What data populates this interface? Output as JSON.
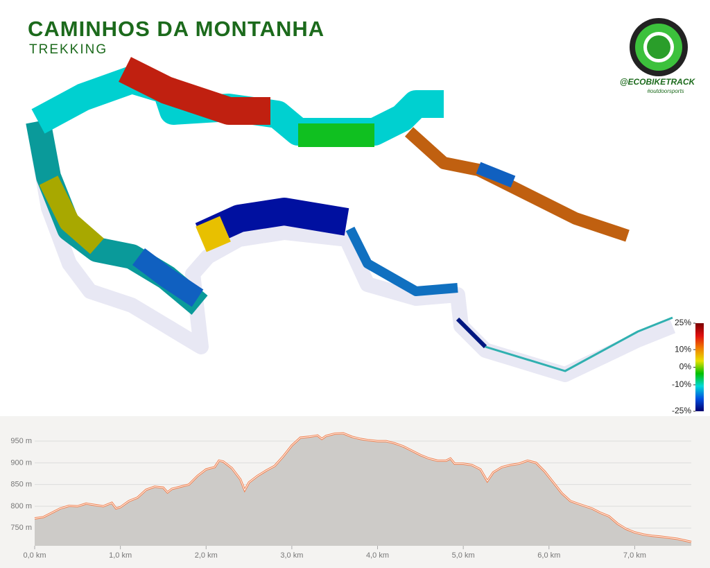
{
  "header": {
    "title": "CAMINHOS DA MONTANHA",
    "subtitle": "TREKKING"
  },
  "logo": {
    "handle": "@ECOBIKETRACK",
    "tag": "#outdoorsports"
  },
  "chart_data": [
    {
      "type": "area",
      "x": [
        0,
        0.1,
        0.2,
        0.3,
        0.4,
        0.5,
        0.6,
        0.7,
        0.8,
        0.9,
        0.95,
        1.0,
        1.1,
        1.2,
        1.3,
        1.4,
        1.5,
        1.55,
        1.6,
        1.7,
        1.8,
        1.9,
        2.0,
        2.1,
        2.15,
        2.2,
        2.3,
        2.4,
        2.45,
        2.5,
        2.6,
        2.7,
        2.8,
        2.9,
        3.0,
        3.1,
        3.2,
        3.3,
        3.35,
        3.4,
        3.5,
        3.6,
        3.7,
        3.8,
        3.9,
        4.0,
        4.1,
        4.2,
        4.3,
        4.4,
        4.5,
        4.6,
        4.7,
        4.8,
        4.85,
        4.9,
        5.0,
        5.1,
        5.2,
        5.28,
        5.35,
        5.45,
        5.55,
        5.65,
        5.75,
        5.85,
        5.95,
        6.05,
        6.15,
        6.25,
        6.35,
        6.5,
        6.6,
        6.7,
        6.8,
        6.9,
        7.0,
        7.1,
        7.2,
        7.3,
        7.5,
        7.66
      ],
      "values": [
        772,
        775,
        785,
        795,
        801,
        800,
        806,
        803,
        800,
        808,
        795,
        798,
        812,
        820,
        838,
        845,
        843,
        832,
        840,
        845,
        850,
        870,
        885,
        890,
        905,
        903,
        888,
        862,
        837,
        855,
        870,
        882,
        893,
        915,
        940,
        958,
        960,
        963,
        955,
        962,
        967,
        968,
        960,
        955,
        952,
        950,
        950,
        945,
        938,
        928,
        918,
        910,
        905,
        905,
        910,
        898,
        898,
        895,
        885,
        858,
        878,
        890,
        895,
        898,
        905,
        900,
        880,
        855,
        830,
        812,
        805,
        795,
        785,
        777,
        760,
        748,
        740,
        735,
        732,
        730,
        725,
        718
      ],
      "color": "#f07d4a",
      "xlim": [
        0,
        7.66
      ],
      "ylim": [
        709,
        990
      ],
      "xticks": [
        {
          "value": 0,
          "label": "0,0 km"
        },
        {
          "value": 1,
          "label": "1,0 km"
        },
        {
          "value": 2,
          "label": "2,0 km"
        },
        {
          "value": 3,
          "label": "3,0 km"
        },
        {
          "value": 4,
          "label": "4,0 km"
        },
        {
          "value": 5,
          "label": "5,0 km"
        },
        {
          "value": 6,
          "label": "6,0 km"
        },
        {
          "value": 7,
          "label": "7,0 km"
        }
      ],
      "yticks": [
        {
          "value": 750,
          "label": "750 m"
        },
        {
          "value": 800,
          "label": "800 m"
        },
        {
          "value": 850,
          "label": "850 m"
        },
        {
          "value": 900,
          "label": "900 m"
        },
        {
          "value": 950,
          "label": "950 m"
        }
      ],
      "grid": true
    },
    {
      "type": "colorbar",
      "ylim": [
        -25,
        25
      ],
      "yticks": [
        {
          "value": 25,
          "label": "25%"
        },
        {
          "value": 10,
          "label": "10%"
        },
        {
          "value": 0,
          "label": "0%"
        },
        {
          "value": -10,
          "label": "-10%"
        },
        {
          "value": -25,
          "label": "-25%"
        }
      ],
      "colors": [
        "#7a0000",
        "#e01010",
        "#f08000",
        "#e8e000",
        "#00c000",
        "#00d8d8",
        "#0050e0",
        "#000070"
      ]
    }
  ]
}
